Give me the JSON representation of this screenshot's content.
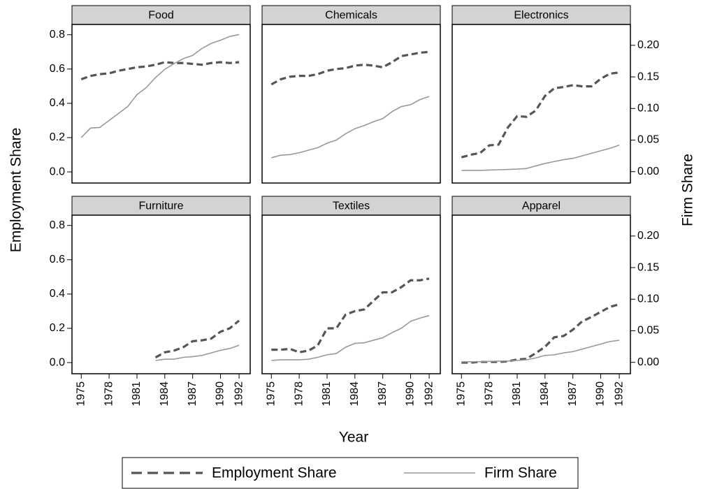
{
  "chart_data": [
    {
      "type": "line",
      "title": "Food",
      "ylabel": "Employment Share",
      "x": [
        1975,
        1976,
        1977,
        1978,
        1979,
        1980,
        1981,
        1982,
        1983,
        1984,
        1985,
        1986,
        1987,
        1988,
        1989,
        1990,
        1991,
        1992
      ],
      "xlim": [
        1974,
        1993.2
      ],
      "ylim": [
        -0.065,
        0.86
      ],
      "y2lim": [
        -0.018,
        0.233
      ],
      "yticks": [
        {
          "value": 0,
          "label": "0.0"
        },
        {
          "value": 0.2,
          "label": "0.2"
        },
        {
          "value": 0.4,
          "label": "0.4"
        },
        {
          "value": 0.6,
          "label": "0.6"
        },
        {
          "value": 0.8,
          "label": "0.8"
        }
      ],
      "series": [
        {
          "name": "Employment Share",
          "color": "#555555",
          "line_style": "dashed",
          "values": [
            0.54,
            0.56,
            0.57,
            0.575,
            0.59,
            0.6,
            0.61,
            0.615,
            0.625,
            0.64,
            0.635,
            0.635,
            0.63,
            0.625,
            0.635,
            0.64,
            0.635,
            0.64
          ]
        },
        {
          "name": "Firm Share",
          "color": "#999999",
          "line_style": "solid",
          "axis": "y2",
          "values": [
            0.054,
            0.069,
            0.07,
            0.081,
            0.092,
            0.103,
            0.122,
            0.133,
            0.149,
            0.162,
            0.171,
            0.179,
            0.184,
            0.195,
            0.203,
            0.208,
            0.214,
            0.217
          ]
        }
      ]
    },
    {
      "type": "line",
      "title": "Chemicals",
      "x": [
        1975,
        1976,
        1977,
        1978,
        1979,
        1980,
        1981,
        1982,
        1983,
        1984,
        1985,
        1986,
        1987,
        1988,
        1989,
        1990,
        1991,
        1992
      ],
      "xlim": [
        1974,
        1993.2
      ],
      "ylim": [
        -0.065,
        0.86
      ],
      "y2lim": [
        -0.018,
        0.233
      ],
      "series": [
        {
          "color": "#555555",
          "line_style": "dashed",
          "values": [
            0.51,
            0.54,
            0.555,
            0.56,
            0.56,
            0.57,
            0.59,
            0.6,
            0.605,
            0.62,
            0.625,
            0.62,
            0.61,
            0.64,
            0.675,
            0.685,
            0.695,
            0.7
          ]
        },
        {
          "color": "#999999",
          "line_style": "solid",
          "axis": "y2",
          "values": [
            0.022,
            0.026,
            0.027,
            0.03,
            0.034,
            0.038,
            0.045,
            0.05,
            0.06,
            0.068,
            0.073,
            0.079,
            0.084,
            0.095,
            0.103,
            0.106,
            0.114,
            0.119
          ]
        }
      ]
    },
    {
      "type": "line",
      "title": "Electronics",
      "y2label": "Firm Share",
      "x": [
        1975,
        1976,
        1977,
        1978,
        1979,
        1980,
        1981,
        1982,
        1983,
        1984,
        1985,
        1986,
        1987,
        1988,
        1989,
        1990,
        1991,
        1992
      ],
      "xlim": [
        1974,
        1993.2
      ],
      "ylim": [
        -0.065,
        0.86
      ],
      "y2lim": [
        -0.018,
        0.233
      ],
      "y2ticks": [
        {
          "value": 0,
          "label": "0.00"
        },
        {
          "value": 0.05,
          "label": "0.05"
        },
        {
          "value": 0.1,
          "label": "0.10"
        },
        {
          "value": 0.15,
          "label": "0.15"
        },
        {
          "value": 0.2,
          "label": "0.20"
        }
      ],
      "series": [
        {
          "color": "#555555",
          "line_style": "dashed",
          "values": [
            0.085,
            0.1,
            0.11,
            0.155,
            0.159,
            0.259,
            0.325,
            0.321,
            0.358,
            0.443,
            0.488,
            0.495,
            0.506,
            0.499,
            0.499,
            0.543,
            0.573,
            0.58
          ]
        },
        {
          "color": "#999999",
          "line_style": "solid",
          "axis": "y2",
          "values": [
            0.002,
            0.002,
            0.002,
            0.0025,
            0.003,
            0.0035,
            0.004,
            0.005,
            0.009,
            0.013,
            0.016,
            0.019,
            0.021,
            0.025,
            0.029,
            0.033,
            0.037,
            0.042
          ]
        }
      ]
    },
    {
      "type": "line",
      "title": "Furniture",
      "x": [
        1975,
        1976,
        1977,
        1978,
        1979,
        1980,
        1981,
        1982,
        1983,
        1984,
        1985,
        1986,
        1987,
        1988,
        1989,
        1990,
        1991,
        1992
      ],
      "xlim": [
        1974,
        1993.2
      ],
      "ylim": [
        -0.065,
        0.86
      ],
      "y2lim": [
        -0.018,
        0.233
      ],
      "yticks": [
        {
          "value": 0,
          "label": "0.0"
        },
        {
          "value": 0.2,
          "label": "0.2"
        },
        {
          "value": 0.4,
          "label": "0.4"
        },
        {
          "value": 0.6,
          "label": "0.6"
        },
        {
          "value": 0.8,
          "label": "0.8"
        }
      ],
      "xticks": [
        1975,
        1978,
        1981,
        1984,
        1987,
        1990,
        1992
      ],
      "series": [
        {
          "color": "#555555",
          "line_style": "dashed",
          "values": [
            null,
            null,
            null,
            null,
            null,
            null,
            null,
            null,
            0.03,
            0.06,
            0.07,
            0.09,
            0.125,
            0.13,
            0.14,
            0.18,
            0.2,
            0.245
          ]
        },
        {
          "color": "#999999",
          "line_style": "solid",
          "axis": "y2",
          "values": [
            null,
            null,
            null,
            null,
            null,
            null,
            null,
            null,
            0.003,
            0.005,
            0.005,
            0.008,
            0.009,
            0.011,
            0.015,
            0.019,
            0.022,
            0.027
          ]
        }
      ]
    },
    {
      "type": "line",
      "title": "Textiles",
      "xlabel": "Year",
      "x": [
        1975,
        1976,
        1977,
        1978,
        1979,
        1980,
        1981,
        1982,
        1983,
        1984,
        1985,
        1986,
        1987,
        1988,
        1989,
        1990,
        1991,
        1992
      ],
      "xlim": [
        1974,
        1993.2
      ],
      "ylim": [
        -0.065,
        0.86
      ],
      "y2lim": [
        -0.018,
        0.233
      ],
      "xticks": [
        1975,
        1978,
        1981,
        1984,
        1987,
        1990,
        1992
      ],
      "series": [
        {
          "color": "#555555",
          "line_style": "dashed",
          "values": [
            0.075,
            0.075,
            0.08,
            0.06,
            0.07,
            0.1,
            0.2,
            0.2,
            0.28,
            0.3,
            0.31,
            0.36,
            0.41,
            0.41,
            0.44,
            0.48,
            0.48,
            0.49
          ]
        },
        {
          "color": "#999999",
          "line_style": "solid",
          "axis": "y2",
          "values": [
            0.003,
            0.004,
            0.004,
            0.004,
            0.005,
            0.008,
            0.012,
            0.014,
            0.024,
            0.03,
            0.031,
            0.035,
            0.039,
            0.047,
            0.054,
            0.065,
            0.07,
            0.074
          ]
        }
      ]
    },
    {
      "type": "line",
      "title": "Apparel",
      "x": [
        1975,
        1976,
        1977,
        1978,
        1979,
        1980,
        1981,
        1982,
        1983,
        1984,
        1985,
        1986,
        1987,
        1988,
        1989,
        1990,
        1991,
        1992
      ],
      "xlim": [
        1974,
        1993.2
      ],
      "ylim": [
        -0.065,
        0.86
      ],
      "y2lim": [
        -0.018,
        0.233
      ],
      "y2ticks": [
        {
          "value": 0,
          "label": "0.00"
        },
        {
          "value": 0.05,
          "label": "0.05"
        },
        {
          "value": 0.1,
          "label": "0.10"
        },
        {
          "value": 0.15,
          "label": "0.15"
        },
        {
          "value": 0.2,
          "label": "0.20"
        }
      ],
      "xticks": [
        1975,
        1978,
        1981,
        1984,
        1987,
        1990,
        1992
      ],
      "series": [
        {
          "color": "#555555",
          "line_style": "dashed",
          "values": [
            0,
            0,
            0.004,
            0.004,
            0.004,
            0.007,
            0.018,
            0.022,
            0.055,
            0.092,
            0.148,
            0.155,
            0.192,
            0.24,
            0.266,
            0.296,
            0.325,
            0.34
          ]
        },
        {
          "color": "#999999",
          "line_style": "solid",
          "axis": "y2",
          "values": [
            0.001,
            0.001,
            0.001,
            0.0015,
            0.002,
            0.002,
            0.003,
            0.004,
            0.007,
            0.011,
            0.012,
            0.015,
            0.017,
            0.021,
            0.025,
            0.029,
            0.033,
            0.035
          ]
        }
      ]
    }
  ]
}
